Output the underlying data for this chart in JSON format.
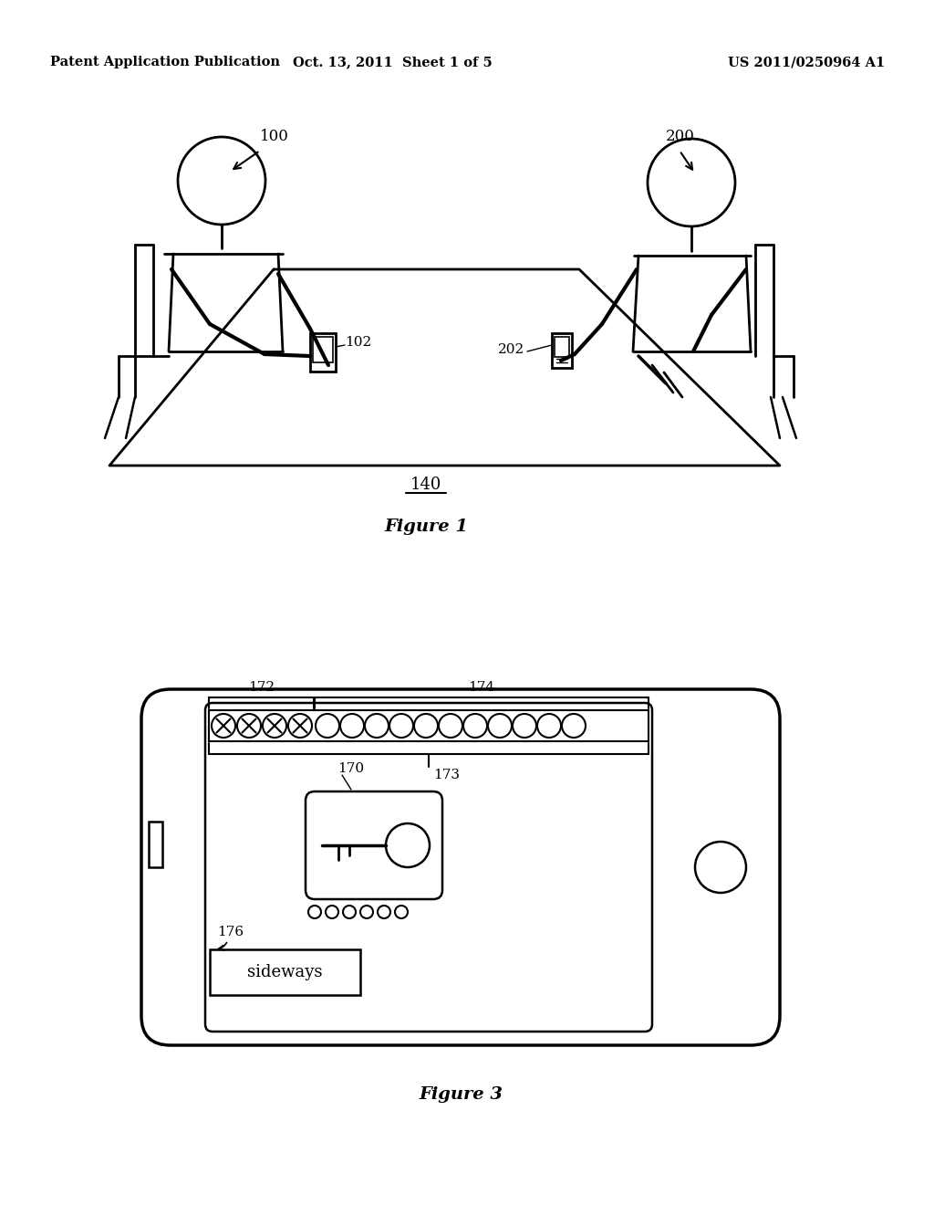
{
  "bg_color": "#ffffff",
  "header_left": "Patent Application Publication",
  "header_mid": "Oct. 13, 2011  Sheet 1 of 5",
  "header_right": "US 2011/0250964 A1",
  "fig1_caption": "Figure 1",
  "fig3_caption": "Figure 3",
  "label_100": "100",
  "label_200": "200",
  "label_102": "102",
  "label_202": "202",
  "label_140": "140",
  "label_172": "172",
  "label_173": "173",
  "label_174": "174",
  "label_170": "170",
  "label_176": "176",
  "sideways_text": "sideways"
}
